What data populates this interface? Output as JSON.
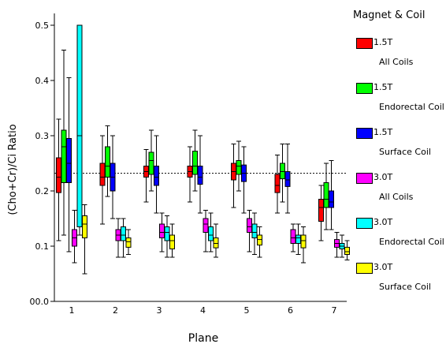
{
  "chart_data": {
    "type": "box",
    "xlabel": "Plane",
    "ylabel": "(Cho+Cr)/Ci Ratio",
    "categories": [
      "1",
      "2",
      "3",
      "4",
      "5",
      "6",
      "7"
    ],
    "yticks": [
      "00.0",
      "0.1",
      "0.2",
      "0.3",
      "0.4",
      "0.5"
    ],
    "ylim": [
      0,
      0.5
    ],
    "reference_line": 0.232,
    "legend": {
      "title": "Magnet & Coil",
      "placement": "right",
      "entries": [
        {
          "line1": "1.5T",
          "line2": "All Coils"
        },
        {
          "line1": "1.5T",
          "line2": "Endorectal Coil"
        },
        {
          "line1": "1.5T",
          "line2": "Surface Coil"
        },
        {
          "line1": "3.0T",
          "line2": "All Coils"
        },
        {
          "line1": "3.0T",
          "line2": "Endorectal Coil"
        },
        {
          "line1": "3.0T",
          "line2": "Surface Coil"
        }
      ]
    },
    "series": [
      {
        "color": "#ff0000",
        "boxes": [
          {
            "low": 0.11,
            "q1": 0.197,
            "median": 0.225,
            "q3": 0.26,
            "high": 0.33
          },
          {
            "low": 0.14,
            "q1": 0.21,
            "median": 0.225,
            "q3": 0.25,
            "high": 0.3
          },
          {
            "low": 0.18,
            "q1": 0.225,
            "median": 0.235,
            "q3": 0.245,
            "high": 0.275
          },
          {
            "low": 0.18,
            "q1": 0.225,
            "median": 0.235,
            "q3": 0.245,
            "high": 0.28
          },
          {
            "low": 0.17,
            "q1": 0.22,
            "median": 0.235,
            "q3": 0.25,
            "high": 0.285
          },
          {
            "low": 0.16,
            "q1": 0.197,
            "median": 0.21,
            "q3": 0.23,
            "high": 0.265
          },
          {
            "low": 0.11,
            "q1": 0.145,
            "median": 0.17,
            "q3": 0.185,
            "high": 0.21
          }
        ]
      },
      {
        "color": "#00ff00",
        "boxes": [
          {
            "low": 0.12,
            "q1": 0.215,
            "median": 0.28,
            "q3": 0.31,
            "high": 0.455
          },
          {
            "low": 0.19,
            "q1": 0.225,
            "median": 0.245,
            "q3": 0.28,
            "high": 0.318
          },
          {
            "low": 0.2,
            "q1": 0.23,
            "median": 0.255,
            "q3": 0.27,
            "high": 0.31
          },
          {
            "low": 0.2,
            "q1": 0.23,
            "median": 0.245,
            "q3": 0.272,
            "high": 0.31
          },
          {
            "low": 0.2,
            "q1": 0.23,
            "median": 0.245,
            "q3": 0.255,
            "high": 0.29
          },
          {
            "low": 0.18,
            "q1": 0.222,
            "median": 0.235,
            "q3": 0.25,
            "high": 0.285
          },
          {
            "low": 0.13,
            "q1": 0.17,
            "median": 0.185,
            "q3": 0.215,
            "high": 0.25
          }
        ]
      },
      {
        "color": "#0000ff",
        "boxes": [
          {
            "low": 0.09,
            "q1": 0.215,
            "median": 0.25,
            "q3": 0.295,
            "high": 0.405
          },
          {
            "low": 0.15,
            "q1": 0.2,
            "median": 0.225,
            "q3": 0.25,
            "high": 0.3
          },
          {
            "low": 0.16,
            "q1": 0.21,
            "median": 0.225,
            "q3": 0.245,
            "high": 0.3
          },
          {
            "low": 0.16,
            "q1": 0.212,
            "median": 0.225,
            "q3": 0.245,
            "high": 0.3
          },
          {
            "low": 0.16,
            "q1": 0.217,
            "median": 0.232,
            "q3": 0.247,
            "high": 0.28
          },
          {
            "low": 0.16,
            "q1": 0.208,
            "median": 0.22,
            "q3": 0.235,
            "high": 0.285
          },
          {
            "low": 0.13,
            "q1": 0.17,
            "median": 0.18,
            "q3": 0.2,
            "high": 0.255
          }
        ]
      },
      {
        "color": "#ff00ff",
        "boxes": [
          {
            "low": 0.07,
            "q1": 0.1,
            "median": 0.115,
            "q3": 0.13,
            "high": 0.165
          },
          {
            "low": 0.08,
            "q1": 0.11,
            "median": 0.12,
            "q3": 0.13,
            "high": 0.15
          },
          {
            "low": 0.09,
            "q1": 0.115,
            "median": 0.125,
            "q3": 0.14,
            "high": 0.16
          },
          {
            "low": 0.09,
            "q1": 0.125,
            "median": 0.14,
            "q3": 0.15,
            "high": 0.165
          },
          {
            "low": 0.09,
            "q1": 0.125,
            "median": 0.135,
            "q3": 0.15,
            "high": 0.165
          },
          {
            "low": 0.09,
            "q1": 0.105,
            "median": 0.115,
            "q3": 0.13,
            "high": 0.14
          },
          {
            "low": 0.08,
            "q1": 0.098,
            "median": 0.105,
            "q3": 0.112,
            "high": 0.125
          }
        ]
      },
      {
        "color": "#00ffff",
        "boxes": [
          {
            "low": 0.12,
            "q1": 0.135,
            "median": 0.3,
            "q3": 0.5,
            "high": 0.5
          },
          {
            "low": 0.08,
            "q1": 0.11,
            "median": 0.12,
            "q3": 0.135,
            "high": 0.15
          },
          {
            "low": 0.08,
            "q1": 0.11,
            "median": 0.125,
            "q3": 0.135,
            "high": 0.155
          },
          {
            "low": 0.09,
            "q1": 0.11,
            "median": 0.12,
            "q3": 0.135,
            "high": 0.16
          },
          {
            "low": 0.085,
            "q1": 0.115,
            "median": 0.125,
            "q3": 0.14,
            "high": 0.16
          },
          {
            "low": 0.085,
            "q1": 0.105,
            "median": 0.115,
            "q3": 0.12,
            "high": 0.14
          },
          {
            "low": 0.08,
            "q1": 0.095,
            "median": 0.1,
            "q3": 0.105,
            "high": 0.12
          }
        ]
      },
      {
        "color": "#ffff00",
        "boxes": [
          {
            "low": 0.05,
            "q1": 0.115,
            "median": 0.14,
            "q3": 0.155,
            "high": 0.175
          },
          {
            "low": 0.085,
            "q1": 0.098,
            "median": 0.108,
            "q3": 0.115,
            "high": 0.13
          },
          {
            "low": 0.08,
            "q1": 0.095,
            "median": 0.11,
            "q3": 0.12,
            "high": 0.14
          },
          {
            "low": 0.08,
            "q1": 0.097,
            "median": 0.105,
            "q3": 0.115,
            "high": 0.14
          },
          {
            "low": 0.08,
            "q1": 0.102,
            "median": 0.112,
            "q3": 0.12,
            "high": 0.135
          },
          {
            "low": 0.07,
            "q1": 0.097,
            "median": 0.11,
            "q3": 0.12,
            "high": 0.135
          },
          {
            "low": 0.075,
            "q1": 0.085,
            "median": 0.09,
            "q3": 0.098,
            "high": 0.11
          }
        ]
      }
    ]
  }
}
